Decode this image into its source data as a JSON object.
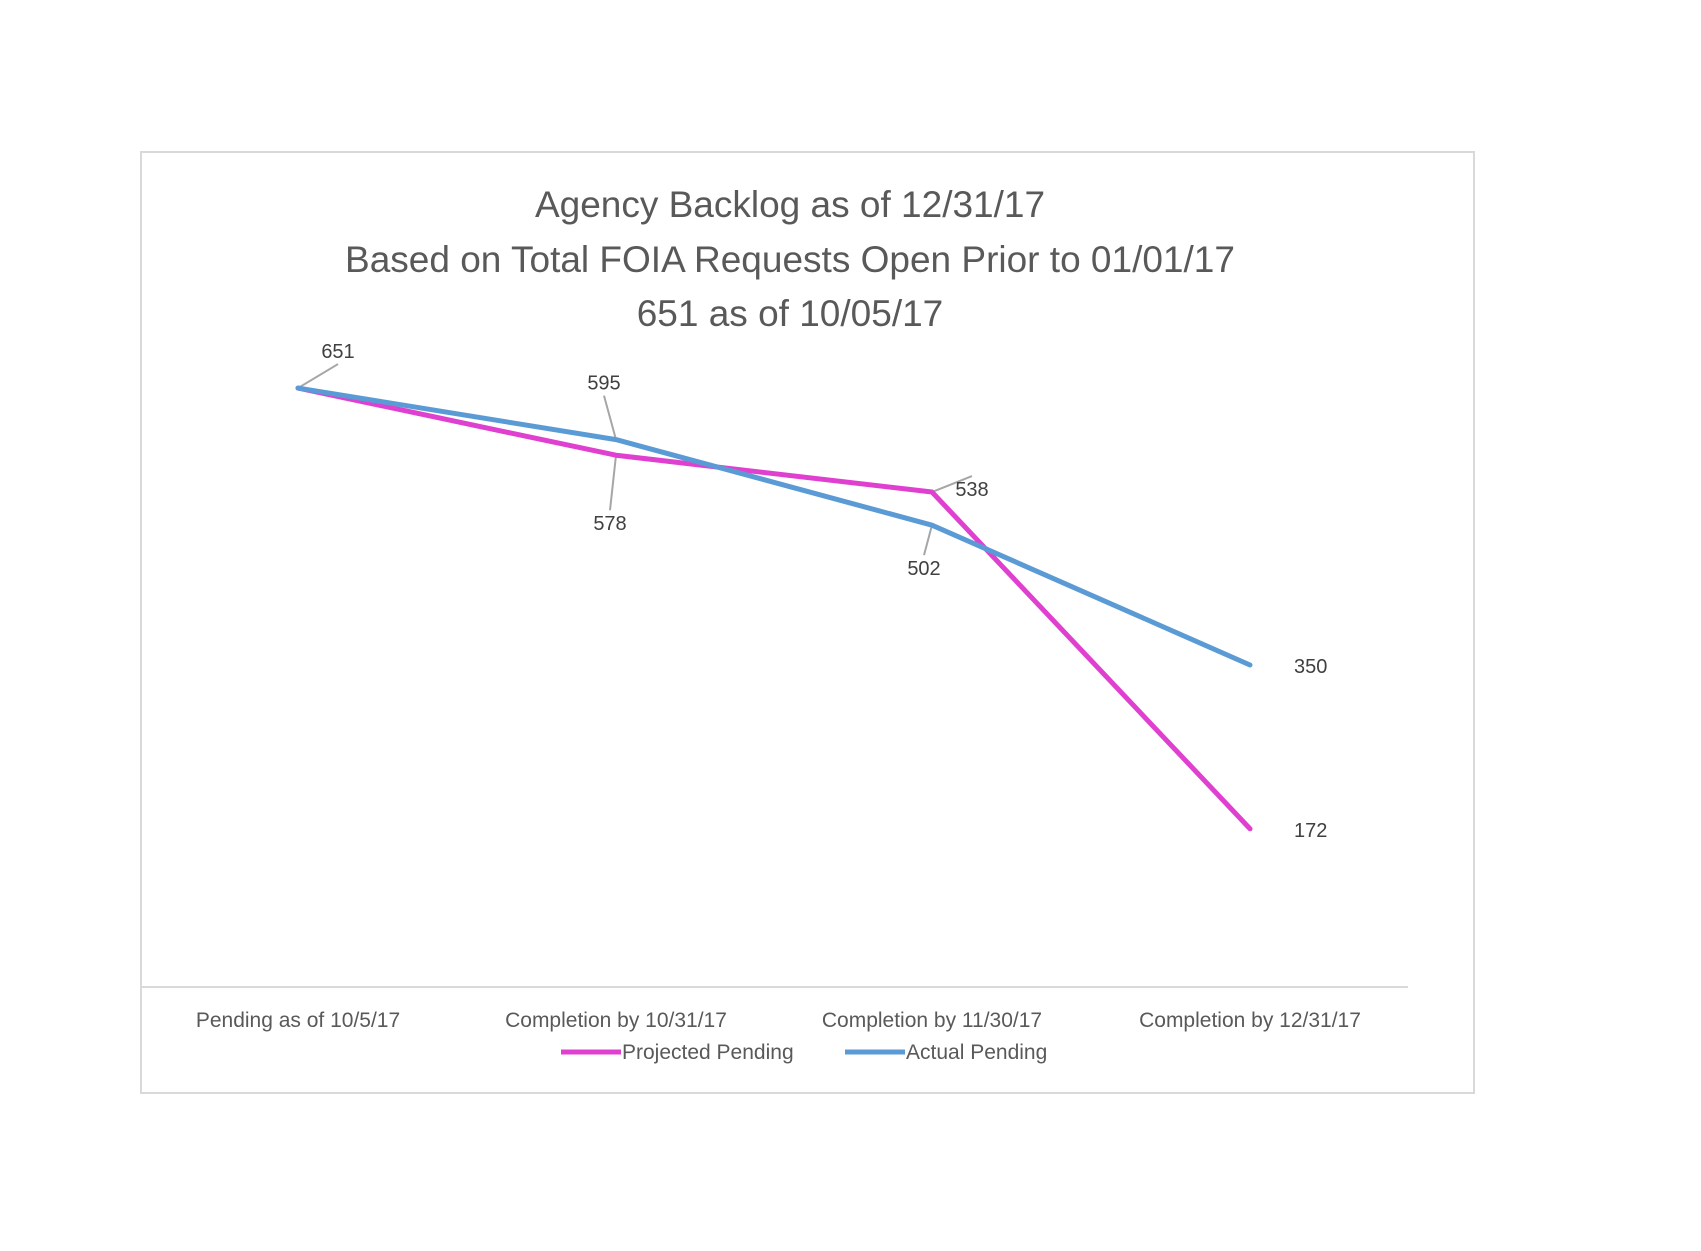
{
  "chart_data": {
    "type": "line",
    "title": [
      "Agency Backlog as of 12/31/17",
      "Based on Total FOIA Requests Open Prior to 01/01/17",
      "651 as of 10/05/17"
    ],
    "categories": [
      "Pending as of 10/5/17",
      "Completion by 10/31/17",
      "Completion by 11/30/17",
      "Completion by 12/31/17"
    ],
    "series": [
      {
        "name": "Projected Pending",
        "color": "#E040D0",
        "values": [
          651,
          578,
          538,
          172
        ]
      },
      {
        "name": "Actual Pending",
        "color": "#5B9BD5",
        "values": [
          651,
          595,
          502,
          350
        ]
      }
    ],
    "ylim": [
      0,
      700
    ],
    "xlabel": "",
    "ylabel": "",
    "grid": false,
    "y_axis_visible": false,
    "data_labels": true,
    "legend": "bottom"
  }
}
